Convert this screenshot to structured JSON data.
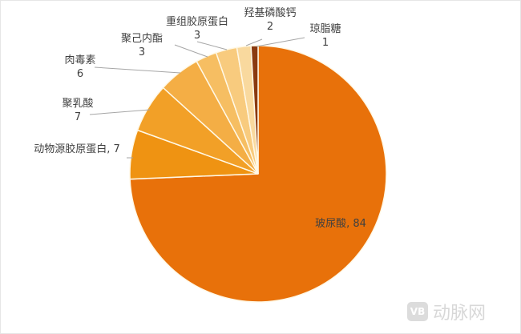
{
  "chart_data": {
    "type": "pie",
    "title": "",
    "categories": [
      "玻尿酸",
      "动物源胶原蛋白",
      "聚乳酸",
      "肉毒素",
      "聚己内酯",
      "重组胶原蛋白",
      "羟基磷酸钙",
      "琼脂糖"
    ],
    "values": [
      84,
      7,
      7,
      6,
      3,
      3,
      2,
      1
    ],
    "labels": [
      "玻尿酸, 84",
      "动物源胶原蛋白, 7",
      "聚乳酸\n7",
      "肉毒素\n6",
      "聚己内酯\n3",
      "重组胶原蛋白\n3",
      "羟基磷酸钙\n2",
      "琼脂糖\n1"
    ],
    "colors": [
      "#E8710A",
      "#EF9312",
      "#F2A027",
      "#F4AE45",
      "#F6BE62",
      "#F8CB7E",
      "#F9D99E",
      "#8A3A10"
    ],
    "start_angle": "12 o'clock",
    "direction": "clockwise",
    "legend": "none"
  },
  "watermark": {
    "logo": "VB",
    "text": "动脉网"
  }
}
